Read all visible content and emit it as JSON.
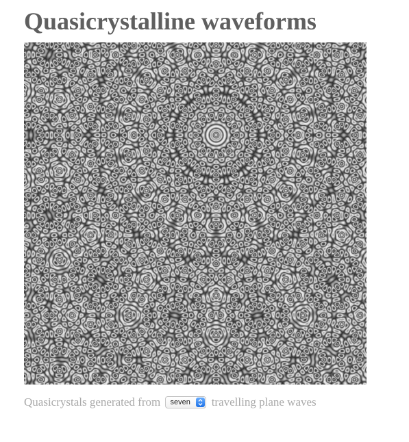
{
  "page": {
    "title": "Quasicrystalline waveforms"
  },
  "caption": {
    "prefix": "Quasicrystals generated from",
    "suffix": "travelling plane waves"
  },
  "wave_select": {
    "selected": "seven",
    "icon": "select-stepper-icon"
  },
  "image": {
    "description_icon": "quasicrystal-canvas",
    "wave_count": 7
  },
  "colors": {
    "title": "#5f5f5f",
    "caption": "#a9a9a9",
    "select_accent": "#2f80ed"
  }
}
